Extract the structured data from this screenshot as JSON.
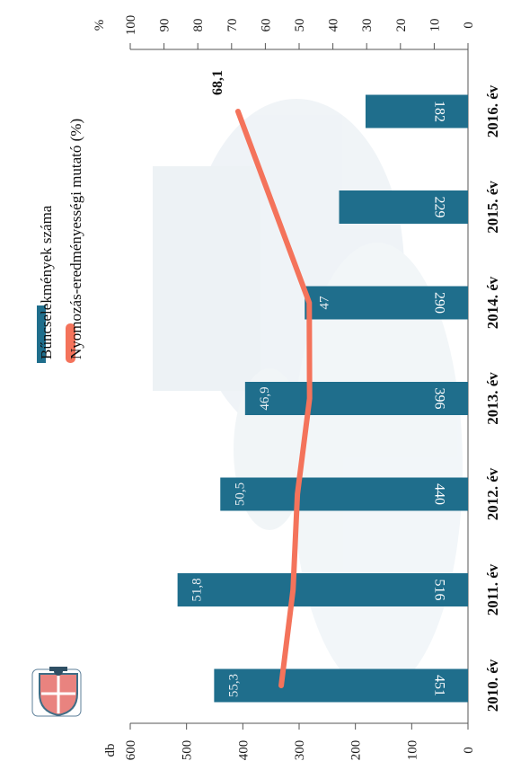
{
  "chart_data": {
    "type": "bar",
    "orientation": "rotated-90-clockwise",
    "categories": [
      "2010. év",
      "2011. év",
      "2012. év",
      "2013. év",
      "2014. év",
      "2015. év",
      "2016. év"
    ],
    "series": [
      {
        "name": "Bűncselekmények száma",
        "type": "bar",
        "axis": "db",
        "values": [
          451,
          516,
          440,
          396,
          290,
          229,
          182
        ],
        "color": "#1f6e8c"
      },
      {
        "name": "Nyomozás-eredményességi mutató (%)",
        "type": "line",
        "axis": "%",
        "values": [
          55.3,
          51.8,
          50.5,
          46.9,
          47,
          null,
          68.1
        ],
        "labels": [
          "55,3",
          "51,8",
          "50,5",
          "46,9",
          "47",
          "",
          "68,1"
        ],
        "color": "#f4735b"
      }
    ],
    "left_axis": {
      "label": "db",
      "ticks": [
        "0",
        "100",
        "200",
        "300",
        "400",
        "500",
        "600"
      ],
      "range": [
        0,
        600
      ]
    },
    "right_axis": {
      "label": "%",
      "ticks": [
        "0",
        "10",
        "20",
        "30",
        "40",
        "50",
        "60",
        "70",
        "80",
        "90",
        "100"
      ],
      "range": [
        0,
        100
      ]
    },
    "legend_position": "top-left",
    "grid": false
  }
}
